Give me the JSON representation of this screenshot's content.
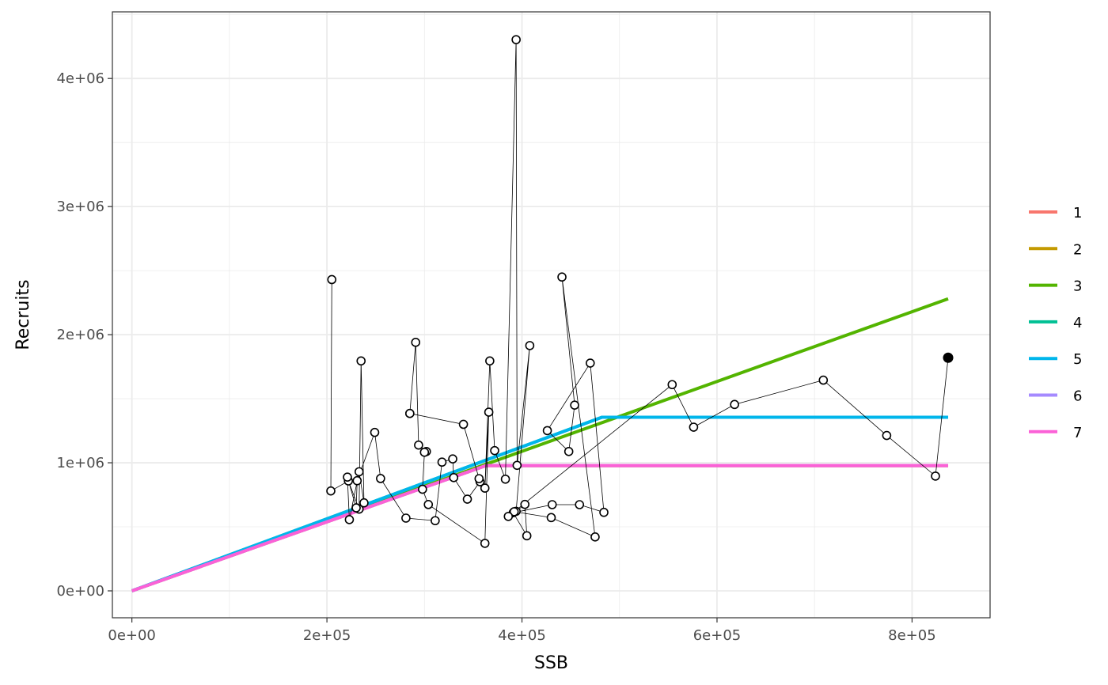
{
  "chart_data": {
    "type": "line",
    "xlabel": "SSB",
    "ylabel": "Recruits",
    "xlim": [
      -20000,
      880000
    ],
    "ylim": [
      -210000,
      4520000
    ],
    "x_ticks": [
      0,
      200000,
      400000,
      600000,
      800000
    ],
    "x_tick_labels": [
      "0e+00",
      "2e+05",
      "4e+05",
      "6e+05",
      "8e+05"
    ],
    "y_ticks": [
      0,
      1000000,
      2000000,
      3000000,
      4000000
    ],
    "y_tick_labels": [
      "0e+00",
      "1e+06",
      "2e+06",
      "3e+06",
      "4e+06"
    ],
    "grid": true,
    "legend_position": "right",
    "series": [
      {
        "name": "1",
        "color": "#F8766D",
        "x": [
          0,
          363000,
          837000
        ],
        "y": [
          0,
          978000,
          978000
        ]
      },
      {
        "name": "2",
        "color": "#C49A00",
        "x": [
          0,
          363000,
          837000
        ],
        "y": [
          0,
          978000,
          978000
        ]
      },
      {
        "name": "3",
        "color": "#53B400",
        "x": [
          0,
          837000
        ],
        "y": [
          0,
          2280000
        ]
      },
      {
        "name": "4",
        "color": "#00C094",
        "x": [
          0,
          482000,
          837000
        ],
        "y": [
          0,
          1355000,
          1355000
        ]
      },
      {
        "name": "5",
        "color": "#00B6EB",
        "x": [
          0,
          482000,
          837000
        ],
        "y": [
          0,
          1355000,
          1355000
        ]
      },
      {
        "name": "6",
        "color": "#A58AFF",
        "x": [
          0,
          363000,
          837000
        ],
        "y": [
          0,
          978000,
          978000
        ]
      },
      {
        "name": "7",
        "color": "#FB61D7",
        "x": [
          0,
          363000,
          837000
        ],
        "y": [
          0,
          978000,
          978000
        ]
      }
    ],
    "observations": {
      "x": [
        205000,
        204000,
        222000,
        233000,
        235000,
        238000,
        233000,
        223000,
        221000,
        230000,
        231000,
        249000,
        255000,
        281000,
        311000,
        318000,
        329000,
        330000,
        344000,
        357000,
        356000,
        340000,
        285000,
        285000,
        291000,
        294000,
        302000,
        300000,
        298000,
        304000,
        362000,
        366000,
        362000,
        367000,
        372000,
        383000,
        394000,
        395000,
        408000,
        394000,
        403000,
        405000,
        391000,
        431000,
        459000,
        484000,
        470000,
        426000,
        448000,
        454000,
        441000,
        475000,
        430000,
        392000,
        386000,
        554000,
        576000,
        618000,
        709000,
        774000,
        824000
      ],
      "y": [
        2430000,
        780000,
        858000,
        638000,
        1795000,
        687000,
        930000,
        556000,
        888000,
        648000,
        860000,
        1237000,
        877000,
        568000,
        548000,
        1005000,
        1030000,
        884000,
        716000,
        852000,
        876000,
        1300000,
        1385000,
        1385000,
        1940000,
        1138000,
        1088000,
        1082000,
        793000,
        674000,
        371000,
        1395000,
        802000,
        1795000,
        1095000,
        872000,
        4303000,
        980000,
        1915000,
        621000,
        675000,
        430000,
        610000,
        673000,
        673000,
        613000,
        1778000,
        1251000,
        1088000,
        1450000,
        2450000,
        421000,
        572000,
        618000,
        581000,
        1610000,
        1278000,
        1455000,
        1645000,
        1213000,
        896000
      ]
    },
    "latest_point": {
      "x": 837000,
      "y": 1820000
    }
  }
}
